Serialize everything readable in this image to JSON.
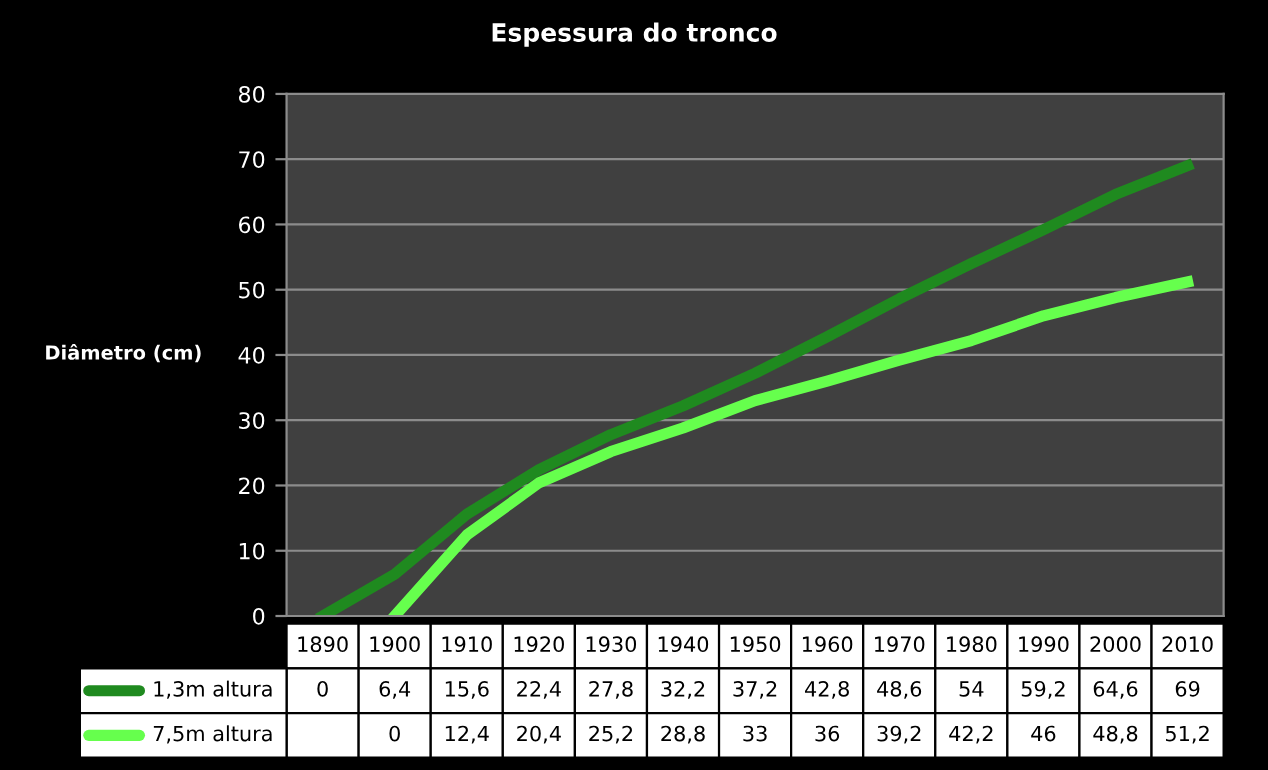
{
  "chart_data": {
    "type": "line",
    "title": "Espessura do tronco",
    "ylabel": "Diâmetro (cm)",
    "categories": [
      "1890",
      "1900",
      "1910",
      "1920",
      "1930",
      "1940",
      "1950",
      "1960",
      "1970",
      "1980",
      "1990",
      "2000",
      "2010"
    ],
    "series": [
      {
        "name": "1,3m altura",
        "color": "#1f8a1f",
        "values": [
          0,
          6.4,
          15.6,
          22.4,
          27.8,
          32.2,
          37.2,
          42.8,
          48.6,
          54,
          59.2,
          64.6,
          69
        ],
        "value_labels": [
          "0",
          "6,4",
          "15,6",
          "22,4",
          "27,8",
          "32,2",
          "37,2",
          "42,8",
          "48,6",
          "54",
          "59,2",
          "64,6",
          "69"
        ]
      },
      {
        "name": "7,5m altura",
        "color": "#66ff4d",
        "values": [
          null,
          0,
          12.4,
          20.4,
          25.2,
          28.8,
          33,
          36,
          39.2,
          42.2,
          46,
          48.8,
          51.2
        ],
        "value_labels": [
          null,
          "0",
          "12,4",
          "20,4",
          "25,2",
          "28,8",
          "33",
          "36",
          "39,2",
          "42,2",
          "46",
          "48,8",
          "51,2"
        ]
      }
    ],
    "ylim": [
      0,
      80
    ],
    "yticks": [
      0,
      10,
      20,
      30,
      40,
      50,
      60,
      70,
      80
    ],
    "grid": "y",
    "legend": "bottom left",
    "data_labels": true,
    "line_style": "solid",
    "marker": "none"
  }
}
